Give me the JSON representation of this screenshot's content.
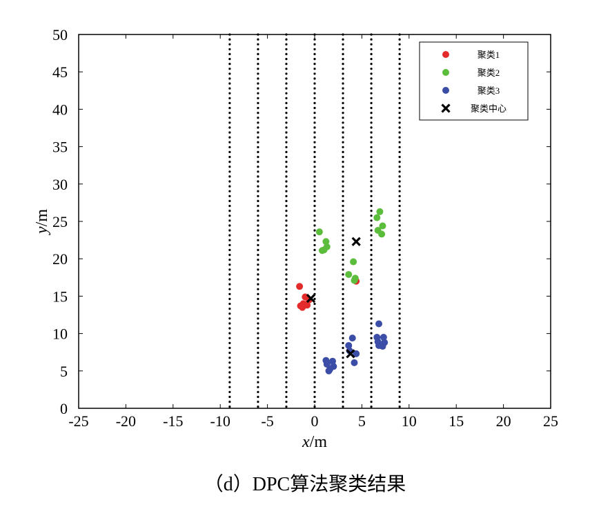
{
  "caption": "（d）DPC算法聚类结果",
  "chart_data": {
    "type": "scatter",
    "title": "",
    "xlabel_italic": "x",
    "xlabel_unit": "/m",
    "ylabel_italic": "y",
    "ylabel_unit": "/m",
    "xlim": [
      -25,
      25
    ],
    "ylim": [
      0,
      50
    ],
    "xticks": [
      -25,
      -20,
      -15,
      -10,
      -5,
      0,
      5,
      10,
      15,
      20,
      25
    ],
    "xtick_labels": [
      "-25",
      "-20",
      "-15",
      "-10",
      "-5",
      "0",
      "5",
      "10",
      "15",
      "20",
      "25"
    ],
    "yticks": [
      0,
      5,
      10,
      15,
      20,
      25,
      30,
      35,
      40,
      45,
      50
    ],
    "ytick_labels": [
      "0",
      "5",
      "10",
      "15",
      "20",
      "25",
      "30",
      "35",
      "40",
      "45",
      "50"
    ],
    "grid": false,
    "vertical_dotted_lines_x": [
      -9,
      -6,
      -3,
      0,
      3,
      6,
      9
    ],
    "legend_position": "top-right",
    "series": [
      {
        "name": "聚类1",
        "color": "#e32b2b",
        "marker": "circle",
        "points": [
          [
            -1.6,
            16.3
          ],
          [
            -1.0,
            14.9
          ],
          [
            -0.6,
            14.5
          ],
          [
            -1.2,
            14.0
          ],
          [
            -0.8,
            13.8
          ],
          [
            -1.5,
            13.7
          ],
          [
            -1.3,
            13.5
          ],
          [
            4.4,
            17.0
          ]
        ]
      },
      {
        "name": "聚类2",
        "color": "#5cbd3c",
        "marker": "circle",
        "points": [
          [
            0.5,
            23.6
          ],
          [
            1.2,
            22.3
          ],
          [
            1.3,
            21.6
          ],
          [
            0.8,
            21.1
          ],
          [
            1.0,
            21.2
          ],
          [
            4.1,
            19.6
          ],
          [
            3.6,
            17.9
          ],
          [
            4.3,
            17.4
          ],
          [
            4.2,
            17.1
          ],
          [
            6.9,
            26.3
          ],
          [
            6.6,
            25.5
          ],
          [
            7.2,
            24.4
          ],
          [
            6.7,
            23.8
          ],
          [
            7.1,
            23.3
          ]
        ]
      },
      {
        "name": "聚类3",
        "color": "#3b4da6",
        "marker": "circle",
        "points": [
          [
            1.2,
            6.4
          ],
          [
            1.9,
            6.3
          ],
          [
            1.3,
            5.9
          ],
          [
            2.0,
            5.6
          ],
          [
            1.6,
            5.2
          ],
          [
            1.5,
            5.0
          ],
          [
            4.0,
            9.4
          ],
          [
            3.6,
            8.4
          ],
          [
            3.7,
            7.7
          ],
          [
            4.4,
            7.3
          ],
          [
            4.2,
            6.1
          ],
          [
            6.8,
            11.3
          ],
          [
            6.6,
            9.5
          ],
          [
            7.3,
            9.5
          ],
          [
            6.7,
            8.9
          ],
          [
            7.4,
            8.8
          ],
          [
            6.8,
            8.4
          ],
          [
            7.2,
            8.3
          ]
        ]
      },
      {
        "name": "聚类中心",
        "color": "#000000",
        "marker": "x",
        "points": [
          [
            -0.4,
            14.7
          ],
          [
            4.4,
            22.3
          ],
          [
            3.8,
            7.3
          ]
        ]
      }
    ]
  }
}
